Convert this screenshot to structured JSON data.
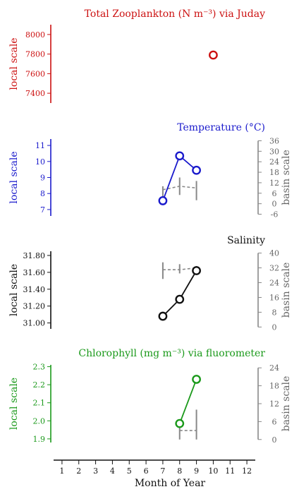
{
  "x_axis": {
    "label": "Month of Year",
    "ticks": [
      1,
      2,
      3,
      4,
      5,
      6,
      7,
      8,
      9,
      10,
      11,
      12
    ],
    "tick_labels": [
      "1",
      "2",
      "3",
      "4",
      "5",
      "6",
      "7",
      "8",
      "9",
      "10",
      "11",
      "12"
    ],
    "range": [
      0.5,
      12.5
    ]
  },
  "chart_data": [
    {
      "type": "scatter",
      "title": "Total Zooplankton (N m⁻³) via Juday",
      "color": "#cc1111",
      "local": {
        "label": "local scale",
        "ylim": [
          7300,
          8100
        ],
        "ticks": [
          7400,
          7600,
          7800,
          8000
        ],
        "tick_labels": [
          "7400",
          "7600",
          "7800",
          "8000"
        ],
        "points": [
          {
            "x": 10,
            "y": 7790
          }
        ]
      }
    },
    {
      "type": "line",
      "title": "Temperature (°C)",
      "color": "#1a1acc",
      "local": {
        "label": "local scale",
        "ylim": [
          6.6,
          11.4
        ],
        "ticks": [
          7,
          8,
          9,
          10,
          11
        ],
        "tick_labels": [
          "7",
          "8",
          "9",
          "10",
          "11"
        ],
        "points": [
          {
            "x": 7,
            "y": 7.55
          },
          {
            "x": 8,
            "y": 10.35
          },
          {
            "x": 9,
            "y": 9.45
          }
        ]
      },
      "basin": {
        "label": "basin scale",
        "ylim": [
          -7,
          37
        ],
        "ticks": [
          -6,
          0,
          6,
          12,
          18,
          24,
          30,
          36
        ],
        "tick_labels": [
          "-6",
          "0",
          "6",
          "12",
          "18",
          "24",
          "30",
          "36"
        ],
        "means": [
          {
            "x": 7,
            "y": 8.0
          },
          {
            "x": 8,
            "y": 10.0
          },
          {
            "x": 9,
            "y": 9.0
          }
        ],
        "ranges": [
          {
            "x": 7,
            "lo": 3.0,
            "hi": 10.0
          },
          {
            "x": 8,
            "lo": 5.0,
            "hi": 15.0
          },
          {
            "x": 9,
            "lo": 2.0,
            "hi": 13.0
          }
        ]
      }
    },
    {
      "type": "line",
      "title": "Salinity",
      "color": "#111111",
      "local": {
        "label": "local scale",
        "ylim": [
          30.93,
          31.85
        ],
        "ticks": [
          31.0,
          31.2,
          31.4,
          31.6,
          31.8
        ],
        "tick_labels": [
          "31.00",
          "31.20",
          "31.40",
          "31.60",
          "31.80"
        ],
        "points": [
          {
            "x": 7,
            "y": 31.08
          },
          {
            "x": 8,
            "y": 31.28
          },
          {
            "x": 9,
            "y": 31.62
          }
        ]
      },
      "basin": {
        "label": "basin scale",
        "ylim": [
          -1,
          41
        ],
        "ticks": [
          0,
          8,
          16,
          24,
          32,
          40
        ],
        "tick_labels": [
          "0",
          "8",
          "16",
          "24",
          "32",
          "40"
        ],
        "means": [
          {
            "x": 7,
            "y": 31.0
          },
          {
            "x": 8,
            "y": 31.0
          },
          {
            "x": 9,
            "y": 32.0
          }
        ],
        "ranges": [
          {
            "x": 7,
            "lo": 26.0,
            "hi": 35.0
          },
          {
            "x": 8,
            "lo": 29.0,
            "hi": 34.0
          },
          {
            "x": 9,
            "lo": 30.0,
            "hi": 33.0
          }
        ]
      }
    },
    {
      "type": "line",
      "title": "Chlorophyll (mg m⁻³) via fluorometer",
      "color": "#1a991a",
      "local": {
        "label": "local scale",
        "ylim": [
          1.88,
          2.31
        ],
        "ticks": [
          1.9,
          2.0,
          2.1,
          2.2,
          2.3
        ],
        "tick_labels": [
          "1.9",
          "2.0",
          "2.1",
          "2.2",
          "2.3"
        ],
        "points": [
          {
            "x": 8,
            "y": 1.985
          },
          {
            "x": 9,
            "y": 2.23
          }
        ]
      },
      "basin": {
        "label": "basin scale",
        "ylim": [
          -1,
          25
        ],
        "ticks": [
          0,
          6,
          12,
          18,
          24
        ],
        "tick_labels": [
          "0",
          "6",
          "12",
          "18",
          "24"
        ],
        "means": [
          {
            "x": 8,
            "y": 3.0
          },
          {
            "x": 9,
            "y": 3.0
          }
        ],
        "ranges": [
          {
            "x": 8,
            "lo": 0.0,
            "hi": 6.0
          },
          {
            "x": 9,
            "lo": 0.0,
            "hi": 10.0
          }
        ]
      }
    }
  ]
}
